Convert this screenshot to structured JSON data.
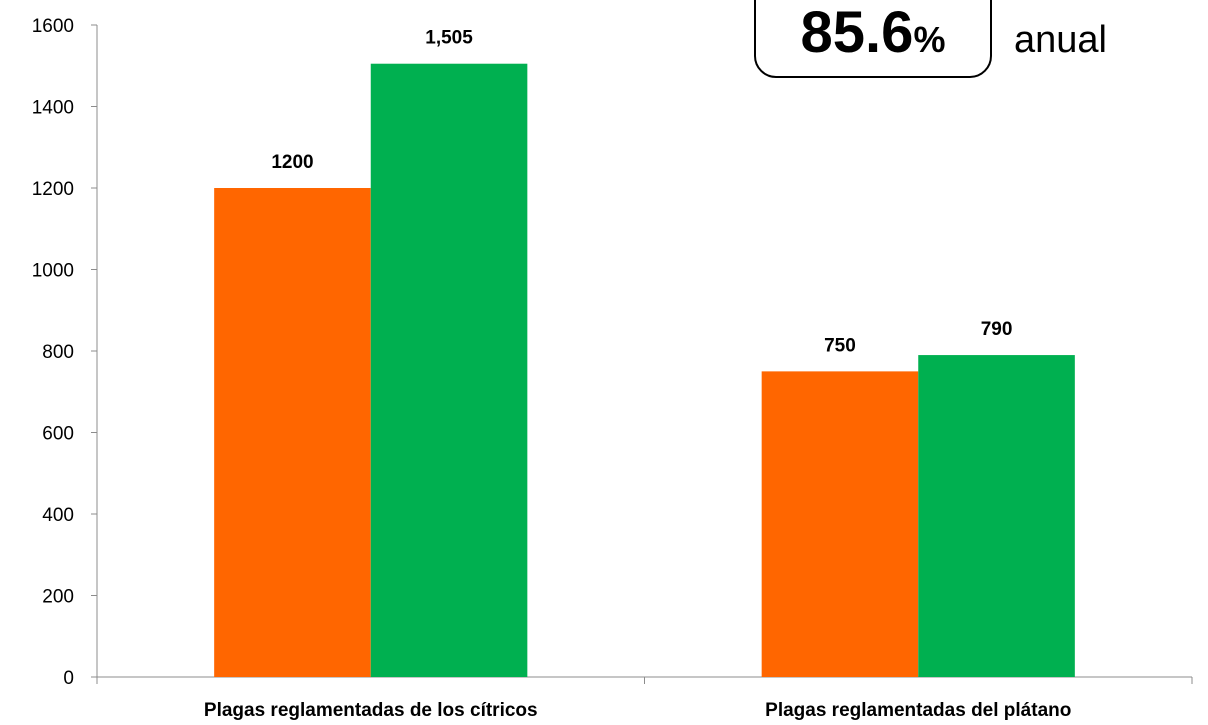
{
  "chart_data": {
    "type": "bar",
    "categories": [
      "Plagas reglamentadas de los cítricos",
      "Plagas reglamentadas del plátano"
    ],
    "series": [
      {
        "values": [
          1200,
          750
        ],
        "labels": [
          "1200",
          "750"
        ],
        "color": "#FF6600"
      },
      {
        "values": [
          1505,
          790
        ],
        "labels": [
          "1,505",
          "790"
        ],
        "color": "#00B050"
      }
    ],
    "ylim": [
      0,
      1600
    ],
    "yticks": [
      0,
      200,
      400,
      600,
      800,
      1000,
      1200,
      1400,
      1600
    ],
    "grid": false,
    "legend": "none"
  },
  "callout": {
    "value": "85.6",
    "unit": "%",
    "suffix": "anual"
  }
}
